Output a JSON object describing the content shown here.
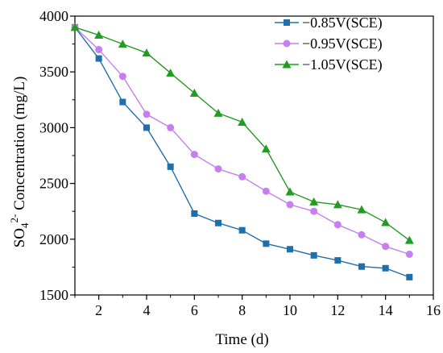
{
  "chart_data": {
    "type": "line",
    "title": "",
    "xlabel": "Time (d)",
    "ylabel": {
      "prefix": "SO",
      "sub": "4",
      "sup": "2-",
      "suffix": " Concentration (mg/L)"
    },
    "xlim": [
      1,
      16
    ],
    "ylim": [
      1500,
      4000
    ],
    "xticks": [
      2,
      4,
      6,
      8,
      10,
      12,
      14,
      16
    ],
    "yticks": [
      1500,
      2000,
      2500,
      3000,
      3500,
      4000
    ],
    "grid": false,
    "legend_position": "top-right",
    "x": [
      1,
      2,
      3,
      4,
      5,
      6,
      7,
      8,
      9,
      10,
      11,
      12,
      13,
      14,
      15
    ],
    "series": [
      {
        "name": "−0.85V(SCE)",
        "color": "#1f6fad",
        "marker": "square",
        "values": [
          3900,
          3620,
          3230,
          3000,
          2650,
          2230,
          2145,
          2080,
          1960,
          1910,
          1855,
          1810,
          1755,
          1740,
          1660
        ]
      },
      {
        "name": "−0.95V(SCE)",
        "color": "#c77ef0",
        "marker": "circle",
        "values": [
          3900,
          3700,
          3460,
          3120,
          3000,
          2760,
          2630,
          2560,
          2430,
          2310,
          2250,
          2130,
          2040,
          1935,
          1865
        ]
      },
      {
        "name": "−1.05V(SCE)",
        "color": "#249b24",
        "marker": "triangle",
        "values": [
          3900,
          3830,
          3750,
          3670,
          3490,
          3310,
          3130,
          3050,
          2810,
          2425,
          2335,
          2310,
          2265,
          2150,
          1990
        ]
      }
    ]
  }
}
